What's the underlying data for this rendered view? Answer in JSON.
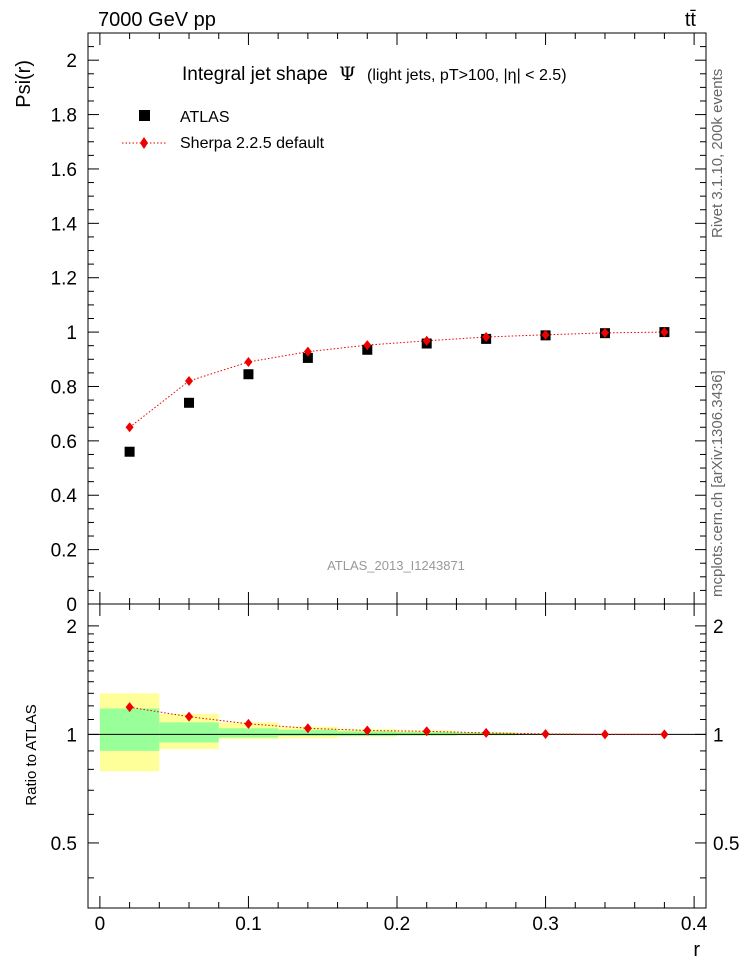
{
  "header": {
    "energy_label": "7000 GeV pp",
    "process_label": "tt̄",
    "side_label_rivet": "Rivet 3.1.10, 200k events",
    "side_label_mcplots": "mcplots.cern.ch [arXiv:1306.3436]"
  },
  "chart_data": [
    {
      "type": "scatter",
      "title_main": "Integral jet shape",
      "title_symbol": "Ψ",
      "title_cuts": "(light jets, pT>100, |η| < 2.5)",
      "ylabel": "Psi(r)",
      "watermark": "ATLAS_2013_I1243871",
      "xlim": [
        -0.008,
        0.408
      ],
      "ylim": [
        0,
        2.1
      ],
      "y_ticks": [
        0,
        0.2,
        0.4,
        0.6,
        0.8,
        1,
        1.2,
        1.4,
        1.6,
        1.8,
        2
      ],
      "y_tick_labels": [
        "0",
        "0.2",
        "0.4",
        "0.6",
        "0.8",
        "1",
        "1.2",
        "1.4",
        "1.6",
        "1.8",
        "2"
      ],
      "legend_position": "top-left",
      "colors": {
        "data": "#000000",
        "mc": "#ee0000"
      },
      "series": [
        {
          "name": "ATLAS",
          "marker": "square",
          "x": [
            0.02,
            0.06,
            0.1,
            0.14,
            0.18,
            0.22,
            0.26,
            0.3,
            0.34,
            0.38
          ],
          "y": [
            0.56,
            0.74,
            0.845,
            0.905,
            0.935,
            0.958,
            0.975,
            0.988,
            0.996,
            1.0
          ]
        },
        {
          "name": "Sherpa 2.2.5 default",
          "marker": "diamond",
          "line": "dotted",
          "x": [
            0.02,
            0.06,
            0.1,
            0.14,
            0.18,
            0.22,
            0.26,
            0.3,
            0.34,
            0.38
          ],
          "y": [
            0.65,
            0.82,
            0.89,
            0.928,
            0.952,
            0.968,
            0.982,
            0.99,
            0.997,
            1.0
          ]
        }
      ]
    },
    {
      "type": "scatter",
      "ylabel": "Ratio to ATLAS",
      "xlabel": "r",
      "xlim": [
        -0.008,
        0.408
      ],
      "ylim": [
        0.33,
        2.3
      ],
      "x_ticks": [
        0,
        0.1,
        0.2,
        0.3,
        0.4
      ],
      "x_tick_labels": [
        "0",
        "0.1",
        "0.2",
        "0.3",
        "0.4"
      ],
      "y_ticks": [
        0.5,
        1,
        2
      ],
      "y_tick_labels": [
        "0.5",
        "1",
        "2"
      ],
      "colors": {
        "band_inner": "#99ff99",
        "band_outer": "#ffff99",
        "ratio": "#ee0000"
      },
      "uncertainty_bands": [
        {
          "x_low": 0.0,
          "x_high": 0.04,
          "inner": [
            0.9,
            1.18
          ],
          "outer": [
            0.79,
            1.3
          ]
        },
        {
          "x_low": 0.04,
          "x_high": 0.08,
          "inner": [
            0.95,
            1.08
          ],
          "outer": [
            0.91,
            1.14
          ]
        },
        {
          "x_low": 0.08,
          "x_high": 0.12,
          "inner": [
            0.98,
            1.04
          ],
          "outer": [
            0.97,
            1.08
          ]
        },
        {
          "x_low": 0.12,
          "x_high": 0.16,
          "inner": [
            0.99,
            1.03
          ],
          "outer": [
            0.975,
            1.05
          ]
        },
        {
          "x_low": 0.16,
          "x_high": 0.2,
          "inner": [
            0.99,
            1.02
          ],
          "outer": [
            0.985,
            1.035
          ]
        },
        {
          "x_low": 0.2,
          "x_high": 0.24,
          "inner": [
            0.993,
            1.015
          ],
          "outer": [
            0.99,
            1.025
          ]
        },
        {
          "x_low": 0.24,
          "x_high": 0.28,
          "inner": [
            0.995,
            1.01
          ],
          "outer": [
            0.993,
            1.015
          ]
        },
        {
          "x_low": 0.28,
          "x_high": 0.32,
          "inner": [
            0.997,
            1.004
          ],
          "outer": [
            0.996,
            1.006
          ]
        },
        {
          "x_low": 0.32,
          "x_high": 0.36,
          "inner": [
            0.998,
            1.002
          ],
          "outer": [
            0.998,
            1.003
          ]
        },
        {
          "x_low": 0.36,
          "x_high": 0.4,
          "inner": [
            0.999,
            1.001
          ],
          "outer": [
            0.999,
            1.001
          ]
        }
      ],
      "series": [
        {
          "name": "Sherpa 2.2.5 default",
          "marker": "diamond",
          "line": "dotted",
          "x": [
            0.02,
            0.06,
            0.1,
            0.14,
            0.18,
            0.22,
            0.26,
            0.3,
            0.34,
            0.38
          ],
          "y": [
            1.19,
            1.12,
            1.07,
            1.04,
            1.025,
            1.02,
            1.01,
            1.003,
            1.0,
            1.0
          ]
        }
      ]
    }
  ]
}
